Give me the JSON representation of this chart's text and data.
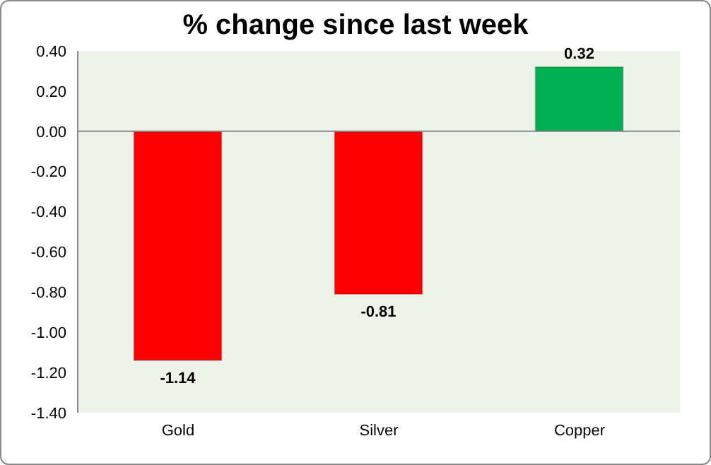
{
  "chart_data": {
    "type": "bar",
    "title": "% change since last week",
    "categories": [
      "Gold",
      "Silver",
      "Copper"
    ],
    "values": [
      -1.14,
      -0.81,
      0.32
    ],
    "colors": [
      "#ff0000",
      "#ff0000",
      "#00b050"
    ],
    "ylim": [
      -1.4,
      0.4
    ],
    "yticks": [
      {
        "value": -1.4,
        "label": "-1.40"
      },
      {
        "value": -1.2,
        "label": "-1.20"
      },
      {
        "value": -1,
        "label": "-1.00"
      },
      {
        "value": -0.8,
        "label": "-0.80"
      },
      {
        "value": -0.6,
        "label": "-0.60"
      },
      {
        "value": -0.4,
        "label": "-0.40"
      },
      {
        "value": -0.2,
        "label": "-0.20"
      },
      {
        "value": 0,
        "label": "0.00"
      },
      {
        "value": 0.2,
        "label": "0.20"
      },
      {
        "value": 0.4,
        "label": "0.40"
      }
    ],
    "data_labels": true
  }
}
